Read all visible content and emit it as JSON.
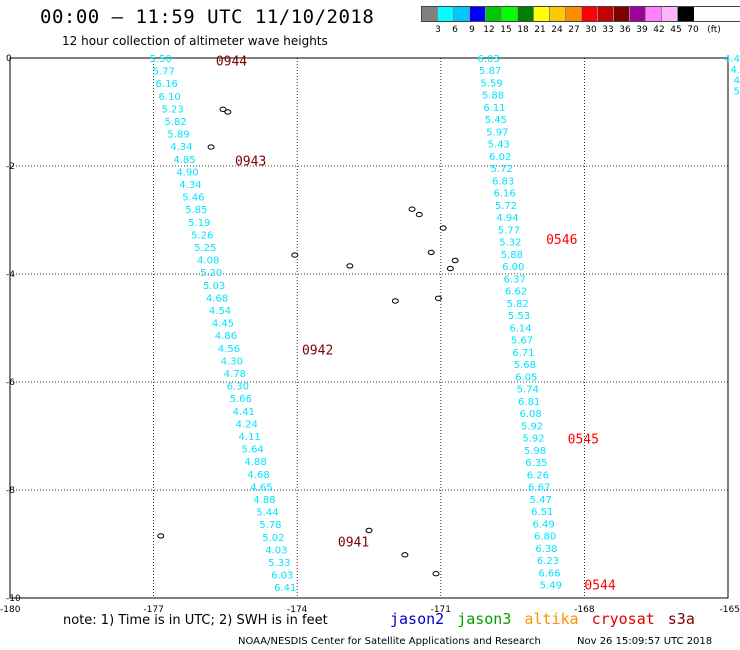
{
  "header": {
    "title": "00:00 — 11:59 UTC 11/10/2018",
    "subtitle": "12 hour collection of altimeter wave heights"
  },
  "legend": {
    "colors": [
      "#808080",
      "#00ffff",
      "#00c8ff",
      "#0000ff",
      "#00c800",
      "#00ff00",
      "#008000",
      "#ffff00",
      "#ffc800",
      "#ff8c00",
      "#ff0000",
      "#c80000",
      "#800000",
      "#a000a0",
      "#ff80ff",
      "#ffb4ff",
      "#000000"
    ],
    "labels": [
      "3",
      "6",
      "9",
      "12",
      "15",
      "18",
      "21",
      "24",
      "27",
      "30",
      "33",
      "36",
      "39",
      "42",
      "45",
      "70",
      "(ft)"
    ]
  },
  "axes": {
    "x_ticks": [
      "-180",
      "-177",
      "-174",
      "-171",
      "-168",
      "-165"
    ],
    "y_ticks": [
      "0",
      "-2",
      "-4",
      "-6",
      "-8",
      "-10"
    ]
  },
  "tracks": [
    {
      "color": "#00e4ff",
      "start": [
        -176.85,
        0.0
      ],
      "end": [
        -174.25,
        -9.8
      ],
      "values": [
        "5.50",
        "5.77",
        "6.16",
        "6.10",
        "5.23",
        "5.82",
        "5.89",
        "4.34",
        "4.85",
        "4.90",
        "4.34",
        "5.46",
        "5.85",
        "5.19",
        "5.26",
        "5.25",
        "4.08",
        "5.20",
        "5.03",
        "4.68",
        "4.54",
        "4.45",
        "4.86",
        "4.56",
        "4.30",
        "4.78",
        "6.30",
        "5.66",
        "4.41",
        "4.24",
        "4.11",
        "5.64",
        "4.88",
        "4.68",
        "4.65",
        "4.88",
        "5.44",
        "5.78",
        "5.02",
        "4.03",
        "5.33",
        "6.03",
        "6.41"
      ]
    },
    {
      "color": "#00e4ff",
      "start": [
        -170.0,
        0.0
      ],
      "end": [
        -168.7,
        -9.75
      ],
      "values": [
        "6.03",
        "5.87",
        "5.59",
        "5.88",
        "6.11",
        "5.45",
        "5.97",
        "5.43",
        "6.02",
        "5.72",
        "6.83",
        "6.16",
        "5.72",
        "4.94",
        "5.77",
        "5.32",
        "5.88",
        "6.00",
        "6.37",
        "6.62",
        "5.82",
        "5.53",
        "6.14",
        "5.67",
        "6.71",
        "5.68",
        "6.05",
        "5.74",
        "6.81",
        "6.08",
        "5.92",
        "5.92",
        "5.98",
        "6.35",
        "6.26",
        "6.67",
        "5.47",
        "6.51",
        "6.49",
        "6.80",
        "6.38",
        "6.23",
        "6.66",
        "5.49"
      ]
    },
    {
      "color": "#00e4ff",
      "start": [
        -164.85,
        0.0
      ],
      "end": [
        -164.75,
        -0.6
      ],
      "values": [
        "4.4",
        "4.",
        "4",
        "5"
      ]
    }
  ],
  "time_labels": [
    {
      "text": "0944",
      "color": "#800000",
      "lon": -175.7,
      "lat": -0.05
    },
    {
      "text": "0943",
      "color": "#800000",
      "lon": -175.3,
      "lat": -1.9
    },
    {
      "text": "0942",
      "color": "#800000",
      "lon": -173.9,
      "lat": -5.4
    },
    {
      "text": "0941",
      "color": "#800000",
      "lon": -173.15,
      "lat": -8.95
    },
    {
      "text": "0546",
      "color": "#ff0000",
      "lon": -168.8,
      "lat": -3.35
    },
    {
      "text": "0545",
      "color": "#ff0000",
      "lon": -168.35,
      "lat": -7.05
    },
    {
      "text": "0544",
      "color": "#ff0000",
      "lon": -168.0,
      "lat": -9.75
    }
  ],
  "islands": [
    {
      "lon": -175.55,
      "lat": -0.95
    },
    {
      "lon": -175.45,
      "lat": -1.0
    },
    {
      "lon": -175.8,
      "lat": -1.65
    },
    {
      "lon": -174.05,
      "lat": -3.65
    },
    {
      "lon": -172.9,
      "lat": -3.85
    },
    {
      "lon": -171.6,
      "lat": -2.8
    },
    {
      "lon": -171.45,
      "lat": -2.9
    },
    {
      "lon": -171.2,
      "lat": -3.6
    },
    {
      "lon": -170.95,
      "lat": -3.15
    },
    {
      "lon": -170.7,
      "lat": -3.75
    },
    {
      "lon": -170.8,
      "lat": -3.9
    },
    {
      "lon": -171.95,
      "lat": -4.5
    },
    {
      "lon": -171.05,
      "lat": -4.45
    },
    {
      "lon": -172.5,
      "lat": -8.75
    },
    {
      "lon": -171.75,
      "lat": -9.2
    },
    {
      "lon": -171.1,
      "lat": -9.55
    },
    {
      "lon": -176.85,
      "lat": -8.85
    }
  ],
  "footer": {
    "note": "note:  1) Time is in UTC;  2) SWH is in feet",
    "satellites": [
      {
        "name": "jason2",
        "color": "#0000d0"
      },
      {
        "name": "jason3",
        "color": "#00a000"
      },
      {
        "name": "altika",
        "color": "#ff9000"
      },
      {
        "name": "cryosat",
        "color": "#e00000"
      },
      {
        "name": "s3a",
        "color": "#800000"
      }
    ],
    "credit": "NOAA/NESDIS Center for Satellite Applications and Research",
    "timestamp": "Nov 26 15:09:57 UTC 2018"
  }
}
